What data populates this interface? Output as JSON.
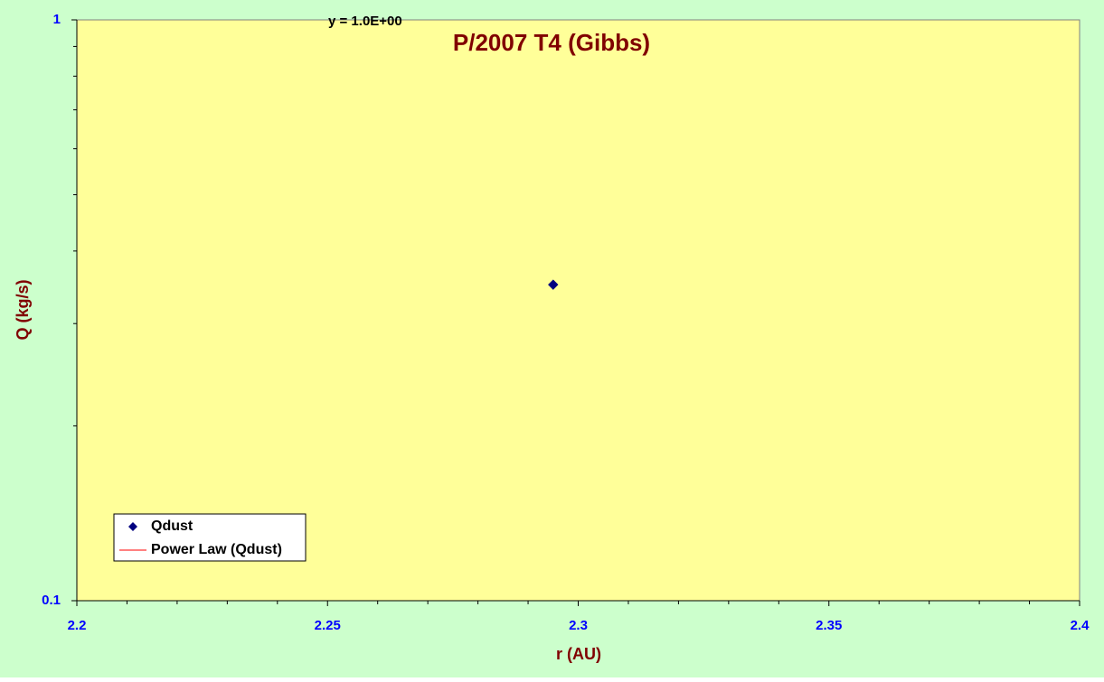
{
  "chart_data": {
    "type": "scatter",
    "title": "P/2007 T4 (Gibbs)",
    "x_label": "r (AU)",
    "y_label": "Q (kg/s)",
    "annotation": "y = 1.0E+00",
    "series": [
      {
        "name": "Qdust",
        "color": "#000080",
        "x": [
          2.295
        ],
        "values": [
          0.35
        ]
      }
    ],
    "trendline": {
      "name": "Power Law (Qdust)",
      "color": "#ff0000"
    },
    "xlim": [
      2.2,
      2.4
    ],
    "xticks": [
      2.2,
      2.25,
      2.3,
      2.35,
      2.4
    ],
    "xminorticks": [
      2.21,
      2.22,
      2.23,
      2.24,
      2.26,
      2.27,
      2.28,
      2.29,
      2.31,
      2.32,
      2.33,
      2.34,
      2.36,
      2.37,
      2.38,
      2.39
    ],
    "ylim": [
      0.1,
      1
    ],
    "yticks": [
      0.1,
      1
    ],
    "yminorticks": [
      0.2,
      0.3,
      0.4,
      0.5,
      0.6,
      0.7,
      0.8,
      0.9
    ],
    "ylog": true,
    "legend": "lower-left",
    "background": "#ccffcc",
    "plot_background": "#ffff99"
  }
}
